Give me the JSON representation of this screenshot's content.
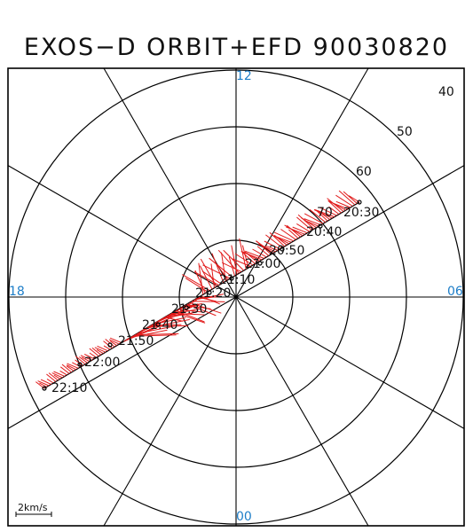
{
  "title": "EXOS−D ORBIT+EFD 90030820",
  "colors": {
    "mlt": "#1e7ec8",
    "vectors": "#e11a1a",
    "grid": "#000000",
    "text": "#111111"
  },
  "mlt_labels": {
    "top": "12",
    "right": "06",
    "bottom": "00",
    "left": "18"
  },
  "latitude_labels": [
    "40",
    "50",
    "60",
    "70"
  ],
  "scale_label": "2km/s",
  "orbit_times": [
    "20:30",
    "20:40",
    "20:50",
    "21:00",
    "21:10",
    "21:20",
    "21:30",
    "21:40",
    "21:50",
    "22:00",
    "22:10"
  ]
}
